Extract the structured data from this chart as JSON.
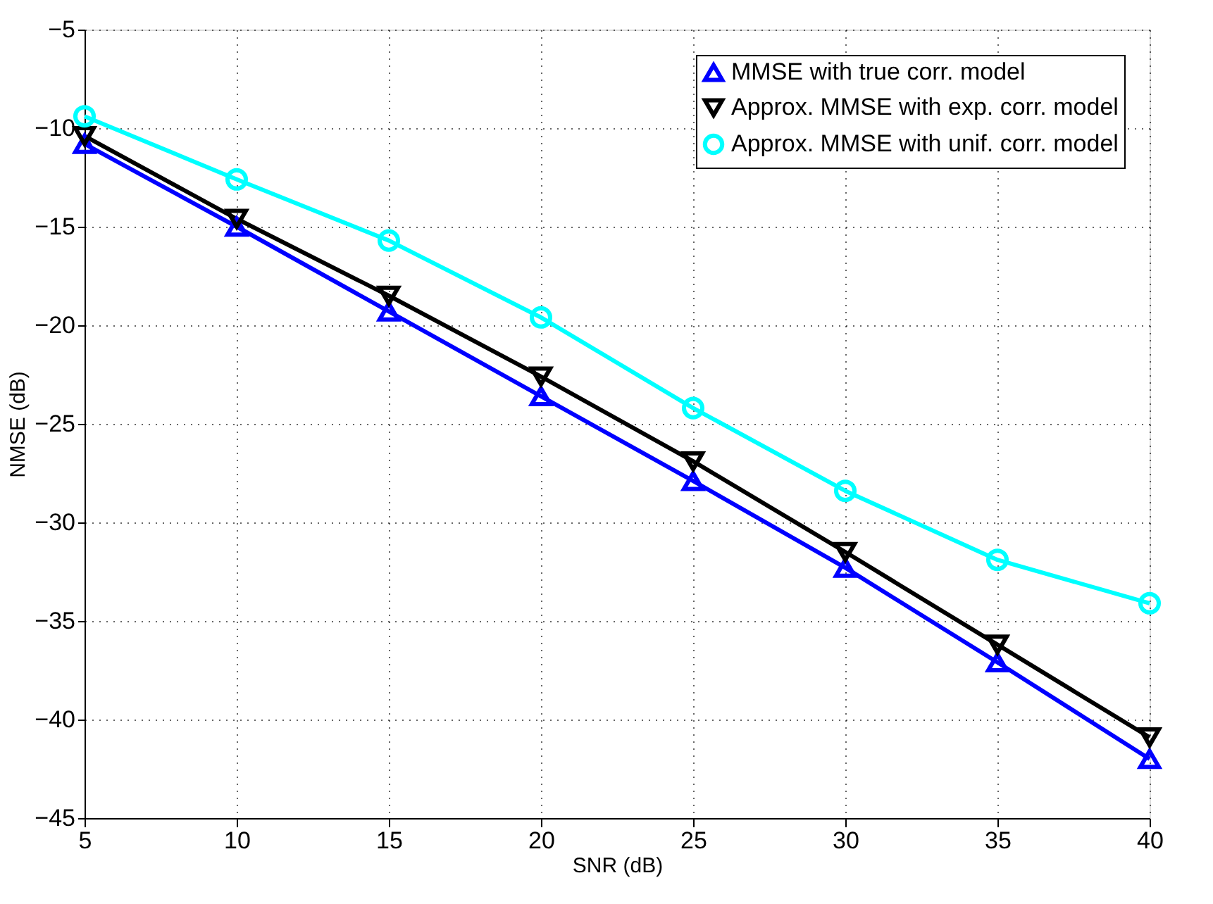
{
  "chart_data": {
    "type": "line",
    "xlabel": "SNR (dB)",
    "ylabel": "NMSE (dB)",
    "x": [
      5,
      10,
      15,
      20,
      25,
      30,
      35,
      40
    ],
    "xlim": [
      5,
      40
    ],
    "xticks": [
      5,
      10,
      15,
      20,
      25,
      30,
      35,
      40
    ],
    "ylim": [
      -45,
      -5
    ],
    "yticks": [
      -45,
      -40,
      -35,
      -30,
      -25,
      -20,
      -15,
      -10,
      -5
    ],
    "grid": true,
    "legend": "top right",
    "line_style": "solid",
    "series": [
      {
        "name": "MMSE with true corr. model",
        "color": "#0000ff",
        "marker": "triangle",
        "values": [
          -10.8,
          -15.0,
          -19.3,
          -23.6,
          -27.9,
          -32.3,
          -37.1,
          -42.0
        ]
      },
      {
        "name": "Approx. MMSE with exp. corr. model",
        "color": "#000000",
        "marker": "triangle-down",
        "values": [
          -10.4,
          -14.6,
          -18.5,
          -22.6,
          -26.9,
          -31.5,
          -36.2,
          -40.9
        ]
      },
      {
        "name": "Approx. MMSE with unif. corr. model",
        "color": "#00ffff",
        "marker": "circle",
        "values": [
          -9.4,
          -12.6,
          -15.7,
          -19.6,
          -24.2,
          -28.4,
          -31.9,
          -34.1
        ]
      }
    ]
  }
}
